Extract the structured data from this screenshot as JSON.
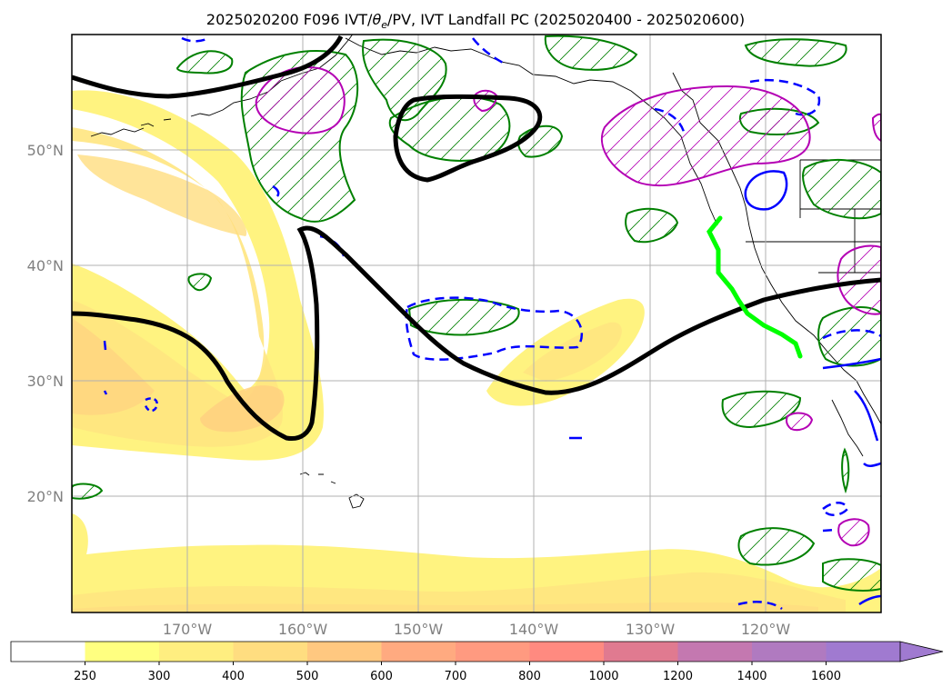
{
  "title": "2025020200 F096 IVT/θe/PV, IVT Landfall PC (2025020400 - 2025020600)",
  "title_parts": {
    "before": "2025020200 F096 IVT/",
    "theta": "θ",
    "sub": "e",
    "after": "/PV, IVT Landfall PC (2025020400 - 2025020600)"
  },
  "map": {
    "lon_labels": [
      "170°W",
      "160°W",
      "150°W",
      "140°W",
      "130°W",
      "120°W"
    ],
    "lat_labels": [
      "50°N",
      "40°N",
      "30°N",
      "20°N"
    ],
    "lon_range": [
      "180°",
      "110°W"
    ],
    "lat_range": [
      "10°N",
      "60°N"
    ],
    "grid": true
  },
  "colorbar": {
    "labels": [
      "250",
      "300",
      "400",
      "500",
      "600",
      "700",
      "800",
      "1000",
      "1200",
      "1400",
      "1600"
    ],
    "colors": [
      "#ffffff",
      "#ffff80",
      "#ffee80",
      "#ffdd80",
      "#ffc880",
      "#ffaa80",
      "#ff9a80",
      "#ff8a80",
      "#e07a90",
      "#c478b0",
      "#b07ac0",
      "#a07ad0"
    ],
    "extend": "max"
  },
  "legend_colors": {
    "pv_contour": "#000000",
    "theta_e_hatch": "#008000",
    "pv_high": "#b400b4",
    "ivt_dashed": "#0000ff",
    "landfall": "#00ff00"
  }
}
